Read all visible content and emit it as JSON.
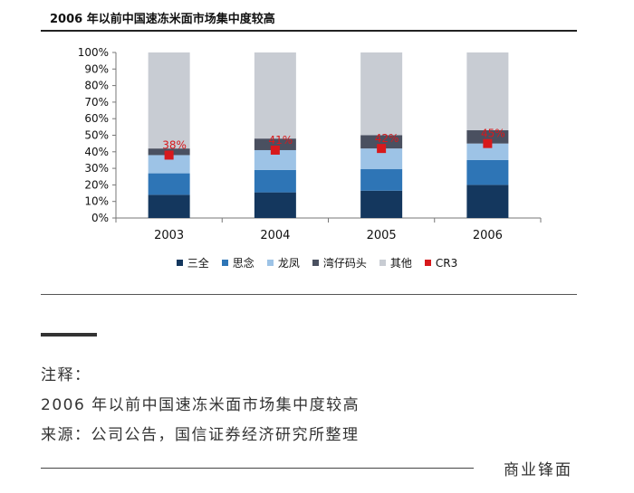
{
  "header": {
    "title": "2006 年以前中国速冻米面市场集中度较高"
  },
  "chart_data": {
    "type": "bar",
    "stacked": true,
    "categories": [
      "2003",
      "2004",
      "2005",
      "2006"
    ],
    "ylim": [
      0,
      100
    ],
    "yticks": [
      "0%",
      "10%",
      "20%",
      "30%",
      "40%",
      "50%",
      "60%",
      "70%",
      "80%",
      "90%",
      "100%"
    ],
    "series": [
      {
        "name": "三全",
        "color": "#14375e",
        "values": [
          14,
          15.5,
          16.5,
          20
        ]
      },
      {
        "name": "思念",
        "color": "#2e75b6",
        "values": [
          13,
          13.5,
          13,
          15
        ]
      },
      {
        "name": "龙凤",
        "color": "#9dc3e6",
        "values": [
          11,
          12,
          12.5,
          10
        ]
      },
      {
        "name": "湾仔码头",
        "color": "#4a5060",
        "values": [
          4,
          7,
          8,
          8
        ]
      },
      {
        "name": "其他",
        "color": "#c8ccd3",
        "values": [
          58,
          52,
          50,
          47
        ]
      }
    ],
    "cr3": {
      "name": "CR3",
      "color": "#d7191c",
      "values": [
        38,
        41,
        42,
        45
      ],
      "labels": [
        "38%",
        "41%",
        "42%",
        "45%"
      ]
    },
    "legend_position": "bottom"
  },
  "notes": {
    "label": "注释：",
    "line1": "2006 年以前中国速冻米面市场集中度较高",
    "line2": "来源：公司公告，国信证券经济研究所整理"
  },
  "brand": "商业锋面"
}
